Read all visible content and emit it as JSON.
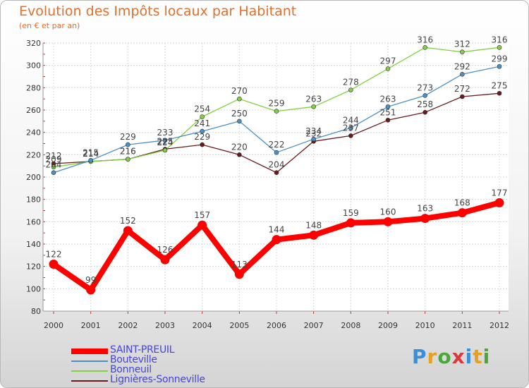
{
  "title": "Evolution des Impôts locaux par Habitant",
  "subtitle": "(en € et par an)",
  "logo": {
    "letters": [
      "P",
      "r",
      "o",
      "x",
      "i",
      "t",
      "i"
    ],
    "colors": [
      "#3a8fd8",
      "#e8a020",
      "#4aa83a",
      "#d83a3a",
      "#3a8fd8",
      "#e8a020",
      "#4aa83a"
    ]
  },
  "chart_data": {
    "type": "line",
    "x": [
      "2000",
      "2001",
      "2002",
      "2003",
      "2004",
      "2005",
      "2006",
      "2007",
      "2008",
      "2009",
      "2010",
      "2011",
      "2012"
    ],
    "ylim": [
      80,
      320
    ],
    "yticks": [
      "80",
      "100",
      "120",
      "140",
      "160",
      "180",
      "200",
      "220",
      "240",
      "260",
      "280",
      "300",
      "320"
    ],
    "grid": true,
    "legend": "bottom-left",
    "series": [
      {
        "name": "SAINT-PREUIL",
        "color": "#ff0000",
        "values": [
          122,
          99,
          152,
          126,
          157,
          113,
          144,
          148,
          159,
          160,
          163,
          168,
          177
        ],
        "labels": [
          "122",
          "99",
          "152",
          "126",
          "157",
          "113",
          "144",
          "148",
          "159",
          "160",
          "163",
          "168",
          "177"
        ]
      },
      {
        "name": "Bouteville",
        "color": "#4a90c8",
        "values": [
          204,
          215,
          229,
          233,
          241,
          250,
          222,
          234,
          244,
          263,
          273,
          292,
          299
        ],
        "labels": [
          "204",
          "215",
          "229",
          "233",
          "241",
          "250",
          "222",
          "234",
          "244",
          "263",
          "273",
          "292",
          "299"
        ]
      },
      {
        "name": "Bonneuil",
        "color": "#80d040",
        "values": [
          209,
          214,
          216,
          224,
          254,
          270,
          259,
          263,
          278,
          297,
          316,
          312,
          316
        ],
        "labels": [
          "209",
          "214",
          "216",
          "224",
          "254",
          "270",
          "259",
          "263",
          "278",
          "297",
          "316",
          "312",
          "316"
        ]
      },
      {
        "name": "Lignières-Sonneville",
        "color": "#6a1a1a",
        "values": [
          212,
          214,
          216,
          225,
          229,
          220,
          204,
          232,
          237,
          251,
          258,
          272,
          275
        ],
        "labels": [
          "212",
          "214",
          "216",
          "225",
          "229",
          "220",
          "204",
          "232",
          "237",
          "251",
          "258",
          "272",
          "275"
        ]
      }
    ]
  }
}
